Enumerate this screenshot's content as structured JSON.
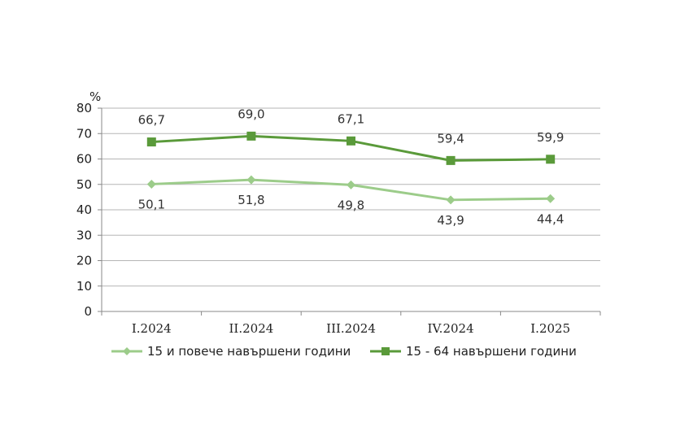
{
  "chart_data": {
    "type": "line",
    "title": "",
    "xlabel": "",
    "ylabel": "%",
    "ylim": [
      0,
      80
    ],
    "yticks": [
      0,
      10,
      20,
      30,
      40,
      50,
      60,
      70,
      80
    ],
    "grid": true,
    "legend_position": "bottom",
    "categories": [
      "I.2024",
      "II.2024",
      "III.2024",
      "IV.2024",
      "I.2025"
    ],
    "series": [
      {
        "name": "15 и повече навършени години",
        "values": [
          50.1,
          51.8,
          49.8,
          43.9,
          44.4
        ],
        "labels": [
          "50,1",
          "51,8",
          "49,8",
          "43,9",
          "44,4"
        ],
        "marker": "diamond",
        "color": "#9ccc8a",
        "label_position": "below"
      },
      {
        "name": "15 - 64 навършени години",
        "values": [
          66.7,
          69.0,
          67.1,
          59.4,
          59.9
        ],
        "labels": [
          "66,7",
          "69,0",
          "67,1",
          "59,4",
          "59,9"
        ],
        "marker": "square",
        "color": "#5a9a3a",
        "label_position": "above"
      }
    ]
  }
}
